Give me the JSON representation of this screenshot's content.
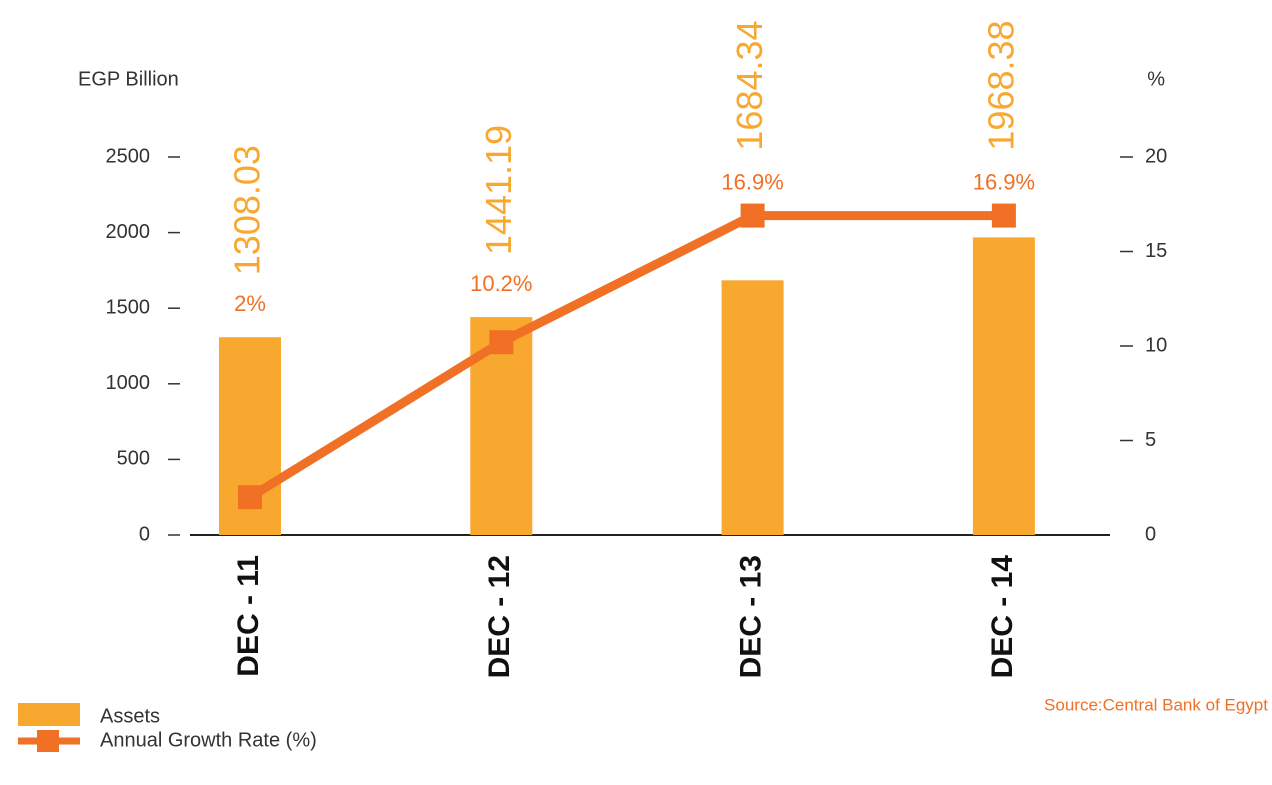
{
  "chart_data": {
    "type": "bar_line",
    "y_label": "EGP Billion",
    "y2_label": "%",
    "categories": [
      "DEC - 11",
      "DEC - 12",
      "DEC - 13",
      "DEC - 14"
    ],
    "series": [
      {
        "name": "Assets",
        "color": "#f9a82f",
        "type": "bar",
        "values": [
          1308.03,
          1441.19,
          1684.34,
          1968.38
        ]
      },
      {
        "name": "Annual Growth Rate (%)",
        "color": "#f07025",
        "type": "line",
        "axis": "y2",
        "values": [
          2,
          10.2,
          16.9,
          16.9
        ],
        "value_labels": [
          "2%",
          "10.2%",
          "16.9%",
          "16.9%"
        ]
      }
    ],
    "ylim": [
      0,
      2500
    ],
    "yticks": [
      0,
      500,
      1000,
      1500,
      2000,
      2500
    ],
    "y2lim": [
      0,
      20
    ],
    "y2ticks": [
      0,
      5,
      10,
      15,
      20
    ],
    "source": "Source:Central Bank of Egypt"
  }
}
